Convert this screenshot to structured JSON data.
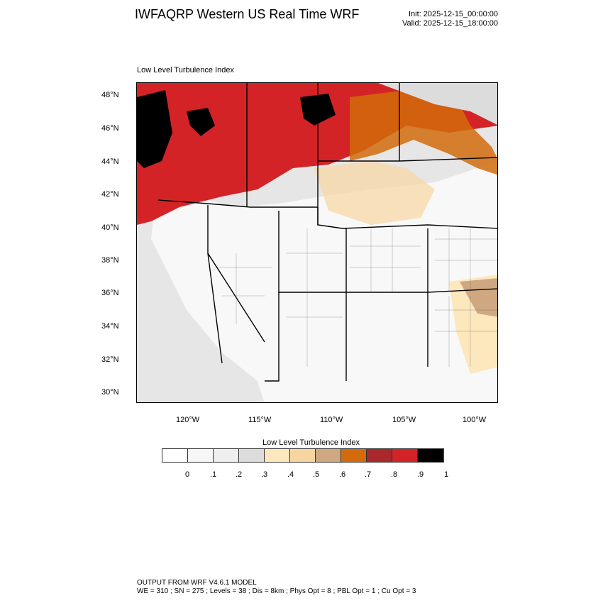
{
  "header": {
    "title": "IWFAQRP Western US Real Time WRF",
    "init": "Init: 2025-12-15_00:00:00",
    "valid": "Valid: 2025-12-15_18:00:00"
  },
  "map": {
    "field_label": "Low Level Turbulence Index",
    "lat_ticks": [
      "48°N",
      "46°N",
      "44°N",
      "42°N",
      "40°N",
      "38°N",
      "36°N",
      "34°N",
      "32°N",
      "30°N"
    ],
    "lon_ticks": [
      "120°W",
      "115°W",
      "110°W",
      "105°W",
      "100°W"
    ]
  },
  "colorbar": {
    "title": "Low Level Turbulence Index",
    "colors": [
      "#ffffff",
      "#f7f7f7",
      "#efefef",
      "#dcdcdc",
      "#fde7bd",
      "#f8d5a0",
      "#cfa882",
      "#d16b0c",
      "#a9282c",
      "#d42326",
      "#000000"
    ],
    "labels": [
      "0",
      ".1",
      ".2",
      ".3",
      ".4",
      ".5",
      ".6",
      ".7",
      ".8",
      ".9",
      "1"
    ]
  },
  "footer": {
    "line1": "OUTPUT FROM WRF V4.6.1 MODEL",
    "line2": "WE = 310 ; SN = 275 ; Levels = 38 ; Dis = 8km ; Phys Opt = 8 ; PBL Opt = 1 ; Cu Opt = 3"
  }
}
